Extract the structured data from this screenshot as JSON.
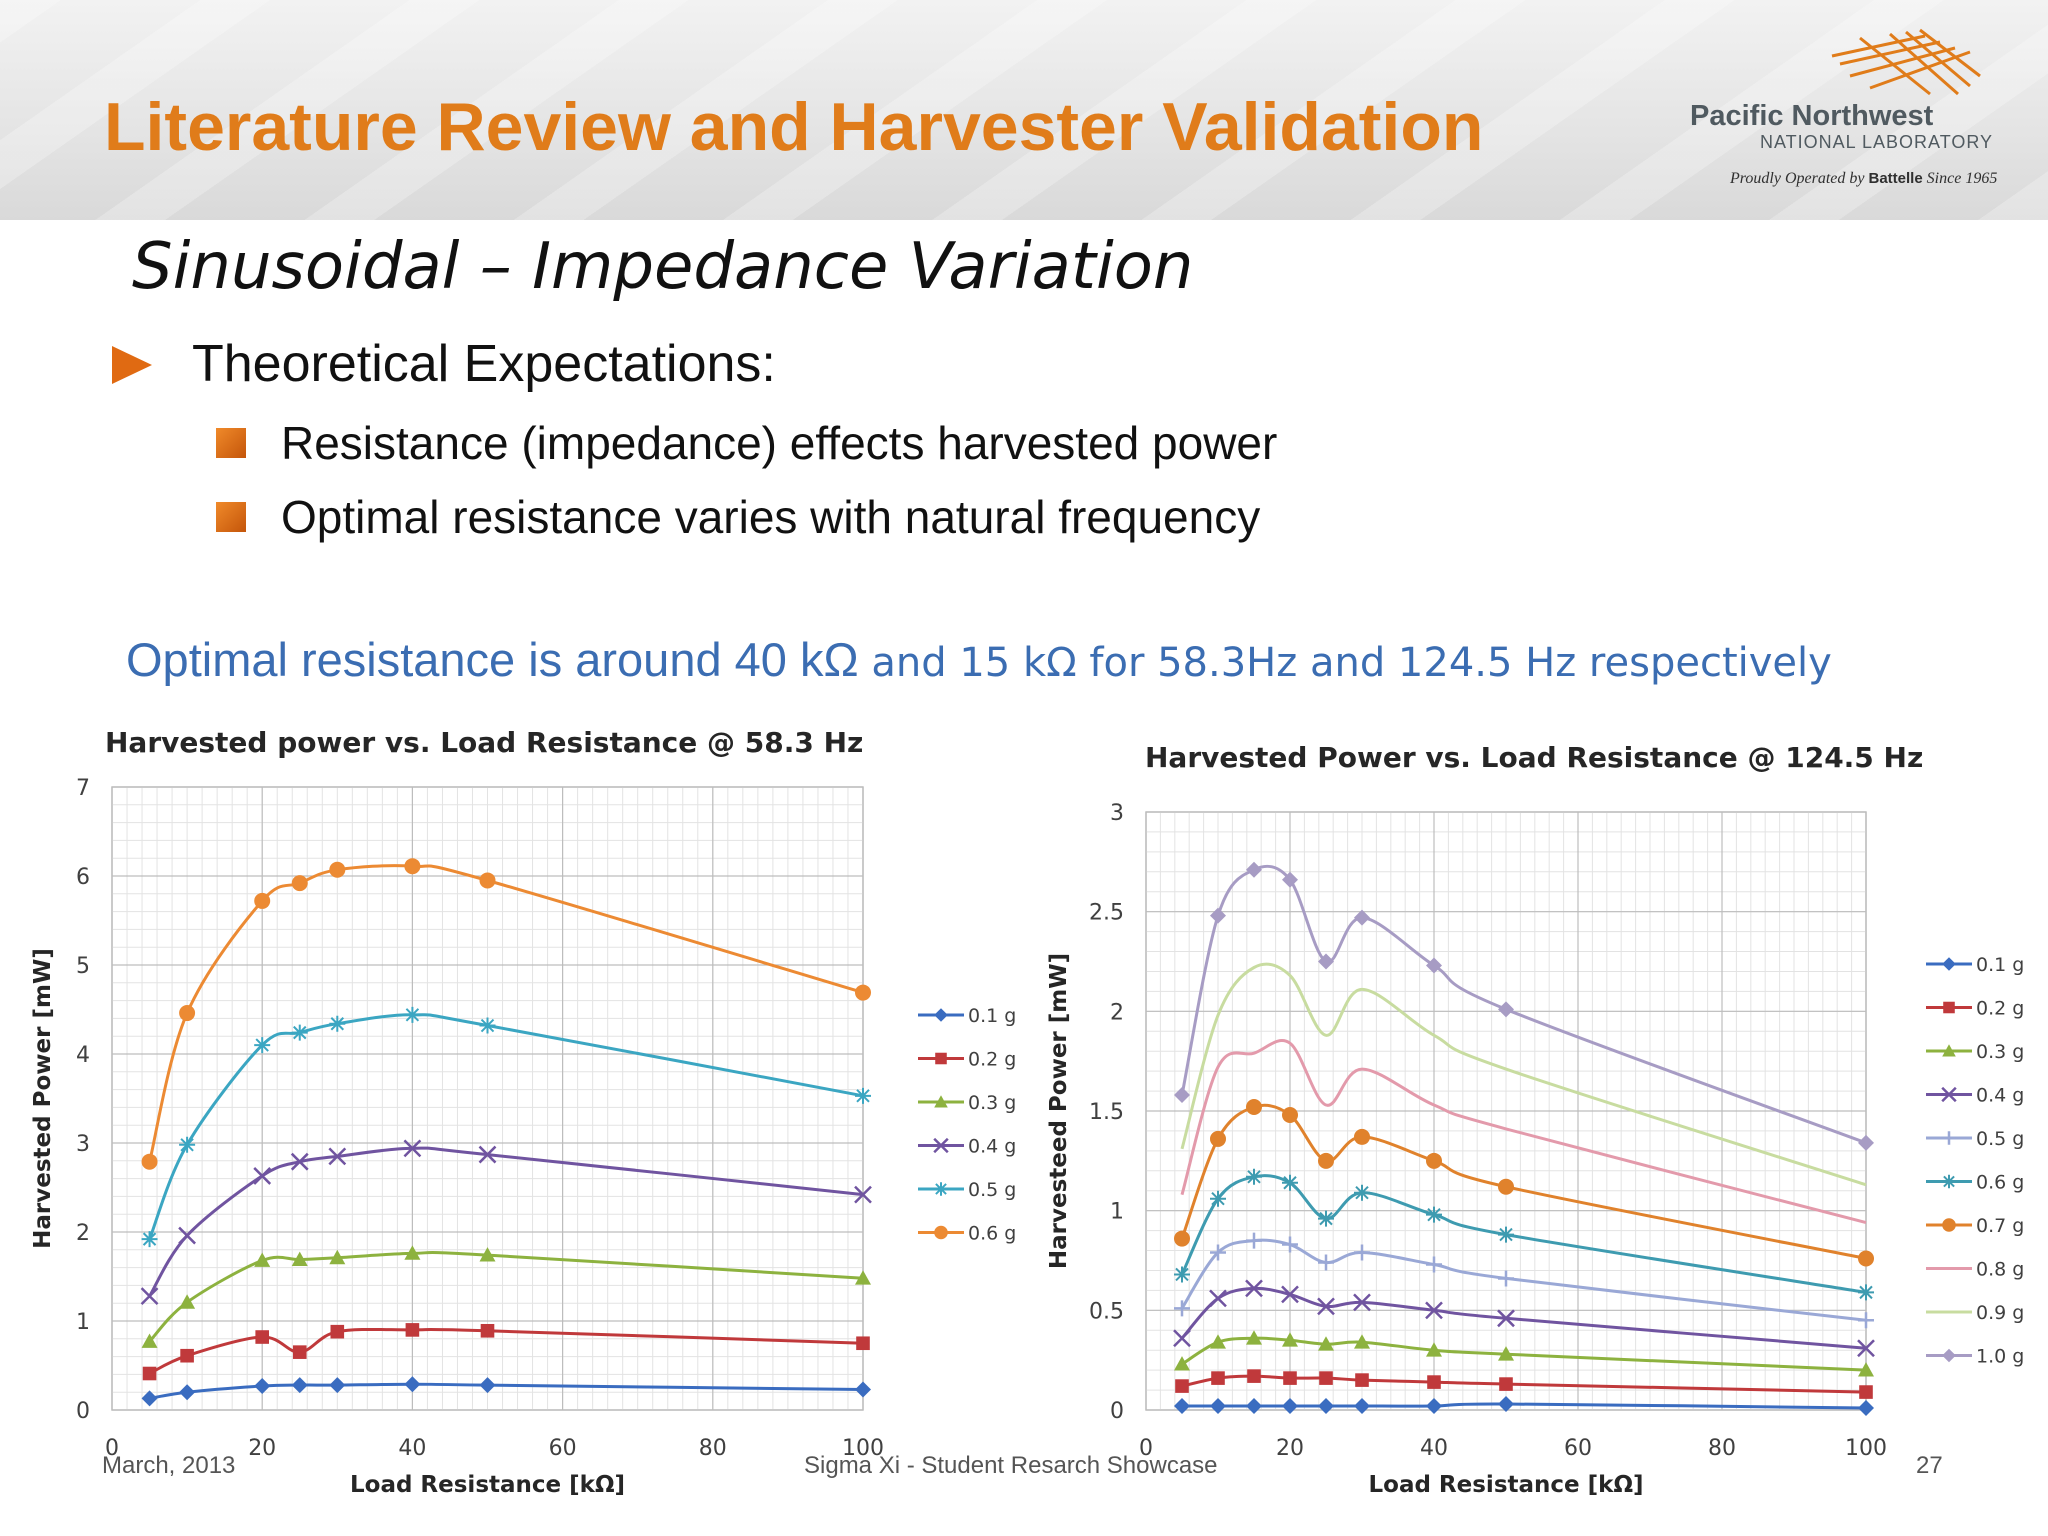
{
  "slide": {
    "title": "Literature Review and Harvester Validation",
    "subtitle": "Sinusoidal – Impedance Variation",
    "bullet_main": "Theoretical Expectations:",
    "bullets_sub": [
      "Resistance (impedance) effects harvested power",
      "Optimal resistance varies with natural frequency"
    ],
    "callout_part1": "Optimal resistance is around 40 kΩ",
    "callout_part2": " and 15 kΩ for 58.3Hz and 124.5 Hz respectively"
  },
  "logo": {
    "org_line1": "Pacific Northwest",
    "org_line2": "NATIONAL LABORATORY",
    "tagline_pre": "Proudly Operated by ",
    "tagline_brand": "Battelle",
    "tagline_post": " Since 1965",
    "mark_color": "#e07c1a"
  },
  "footer": {
    "date": "March, 2013",
    "event": "Sigma Xi - Student Resarch Showcase",
    "page": "27"
  },
  "colors": {
    "title_orange": "#e07c1a",
    "callout_blue": "#3b6db2",
    "bullet_orange": "#e06a12"
  },
  "chart_data": [
    {
      "type": "line",
      "title": "Harvested power vs. Load Resistance @ 58.3 Hz",
      "xlabel": "Load Resistance [kΩ]",
      "ylabel": "Harvested Power  [mW]",
      "xlim": [
        0,
        100
      ],
      "ylim": [
        0,
        7
      ],
      "xticks": [
        0,
        20,
        40,
        60,
        80,
        100
      ],
      "yticks": [
        0,
        1,
        2,
        3,
        4,
        5,
        6,
        7
      ],
      "grid": true,
      "legend_position": "right",
      "x": [
        5,
        10,
        20,
        25,
        30,
        40,
        50,
        100
      ],
      "series": [
        {
          "name": "0.1 g",
          "color": "#3a6cc0",
          "marker": "diamond",
          "values": [
            0.13,
            0.2,
            0.27,
            0.28,
            0.28,
            0.29,
            0.28,
            0.23
          ]
        },
        {
          "name": "0.2 g",
          "color": "#c0393b",
          "marker": "square",
          "values": [
            0.41,
            0.61,
            0.82,
            0.65,
            0.88,
            0.9,
            0.89,
            0.75
          ]
        },
        {
          "name": "0.3 g",
          "color": "#8db23f",
          "marker": "triangle",
          "values": [
            0.77,
            1.21,
            1.68,
            1.69,
            1.71,
            1.76,
            1.74,
            1.48
          ]
        },
        {
          "name": "0.4 g",
          "color": "#7054a0",
          "marker": "x",
          "values": [
            1.28,
            1.96,
            2.63,
            2.79,
            2.85,
            2.94,
            2.87,
            2.42
          ]
        },
        {
          "name": "0.5 g",
          "color": "#3ba6c2",
          "marker": "star",
          "values": [
            1.92,
            2.98,
            4.1,
            4.24,
            4.34,
            4.44,
            4.32,
            3.53
          ]
        },
        {
          "name": "0.6 g",
          "color": "#ec8a33",
          "marker": "circle",
          "values": [
            2.79,
            4.46,
            5.72,
            5.92,
            6.07,
            6.11,
            5.95,
            4.69
          ]
        }
      ]
    },
    {
      "type": "line",
      "title": "Harvested Power vs. Load Resistance @ 124.5 Hz",
      "xlabel": "Load Resistance  [kΩ]",
      "ylabel": "Harvesteed Power  [mW]",
      "xlim": [
        0,
        100
      ],
      "ylim": [
        0,
        3
      ],
      "xticks": [
        0,
        20,
        40,
        60,
        80,
        100
      ],
      "yticks": [
        0,
        0.5,
        1,
        1.5,
        2,
        2.5,
        3
      ],
      "grid": true,
      "legend_position": "right",
      "x": [
        5,
        10,
        15,
        20,
        25,
        30,
        40,
        50,
        100
      ],
      "series": [
        {
          "name": "0.1 g",
          "color": "#3a6cc0",
          "marker": "diamond",
          "values": [
            0.02,
            0.02,
            0.02,
            0.02,
            0.02,
            0.02,
            0.02,
            0.03,
            0.01
          ]
        },
        {
          "name": "0.2 g",
          "color": "#c0393b",
          "marker": "square",
          "values": [
            0.12,
            0.16,
            0.17,
            0.16,
            0.16,
            0.15,
            0.14,
            0.13,
            0.09
          ]
        },
        {
          "name": "0.3 g",
          "color": "#8db23f",
          "marker": "triangle",
          "values": [
            0.23,
            0.34,
            0.36,
            0.35,
            0.33,
            0.34,
            0.3,
            0.28,
            0.2
          ]
        },
        {
          "name": "0.4 g",
          "color": "#7054a0",
          "marker": "x",
          "values": [
            0.36,
            0.56,
            0.61,
            0.58,
            0.52,
            0.54,
            0.5,
            0.46,
            0.31
          ]
        },
        {
          "name": "0.5 g",
          "color": "#9aa8d6",
          "marker": "plus",
          "values": [
            0.51,
            0.79,
            0.85,
            0.83,
            0.74,
            0.79,
            0.73,
            0.66,
            0.45
          ]
        },
        {
          "name": "0.6 g",
          "color": "#3e9bb0",
          "marker": "star",
          "values": [
            0.68,
            1.06,
            1.17,
            1.14,
            0.96,
            1.09,
            0.98,
            0.88,
            0.59
          ]
        },
        {
          "name": "0.7 g",
          "color": "#e0822c",
          "marker": "circle",
          "values": [
            0.86,
            1.36,
            1.52,
            1.48,
            1.25,
            1.37,
            1.25,
            1.12,
            0.76
          ]
        },
        {
          "name": "0.8 g",
          "color": "#e39aab",
          "marker": "line",
          "values": [
            1.08,
            1.72,
            1.79,
            1.84,
            1.53,
            1.71,
            1.53,
            1.41,
            0.94
          ]
        },
        {
          "name": "0.9 g",
          "color": "#c8dca0",
          "marker": "line",
          "values": [
            1.31,
            1.98,
            2.22,
            2.18,
            1.88,
            2.11,
            1.88,
            1.71,
            1.13
          ]
        },
        {
          "name": "1.0 g",
          "color": "#a79cc4",
          "marker": "diamond",
          "values": [
            1.58,
            2.48,
            2.71,
            2.66,
            2.25,
            2.47,
            2.23,
            2.01,
            1.34
          ]
        }
      ]
    }
  ]
}
